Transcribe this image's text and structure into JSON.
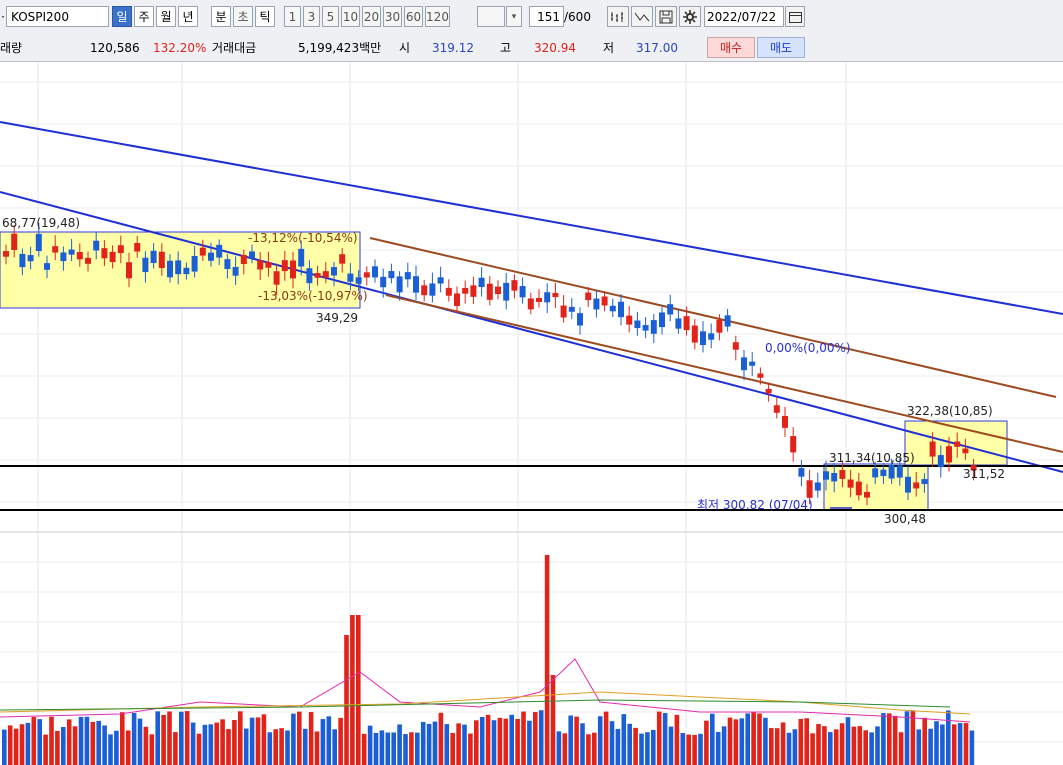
{
  "toolbar": {
    "symbol": "KOSPI200",
    "periods": [
      "일",
      "주",
      "월",
      "년",
      "분",
      "초",
      "틱"
    ],
    "selected_period": "일",
    "intervals": [
      "1",
      "3",
      "5",
      "10",
      "20",
      "30",
      "60",
      "120"
    ],
    "count_value": "151",
    "count_total": "/600",
    "date": "2022/07/22"
  },
  "info": {
    "volume_label": "래량",
    "volume_value": "120,586",
    "volume_pct": "132.20%",
    "amount_label": "거래대금",
    "amount_value": "5,199,423백만",
    "open_label": "시",
    "open_value": "319.12",
    "high_label": "고",
    "high_value": "320.94",
    "low_label": "저",
    "low_value": "317.00",
    "buy_label": "매수",
    "sell_label": "매도"
  },
  "annotations": {
    "box1_top": "68,77(19,48)",
    "box1_ret_top": "-13,12%(-10,54%)",
    "box1_ret_bottom": "-13,03%(-10,97%)",
    "box1_low": "349,29",
    "channel_label": "0,00%(0,00%)",
    "box3_top": "322,38(10,85)",
    "box3_low": "311,52",
    "box2_top": "311,34(10,85)",
    "box2_low": "300,48",
    "lowest": "최저 300,82 (07/04)"
  },
  "colors": {
    "up": "#e2231a",
    "down": "#1b5fd6",
    "trend_blue": "#1f2fd6",
    "trend_brown": "#9c4a1f",
    "box_fill": "#ffffa8"
  }
}
